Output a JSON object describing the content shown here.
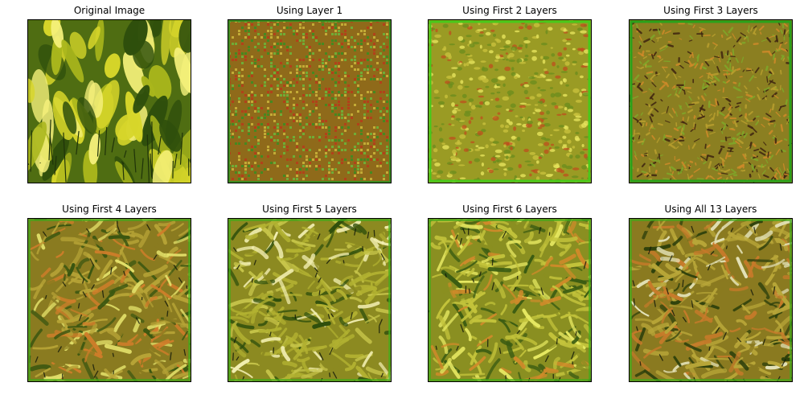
{
  "figure": {
    "panels": [
      {
        "title": "Original Image",
        "style": "photo",
        "colors": {
          "bg": "#4f6d12",
          "a": "#d7d62a",
          "b": "#a9b61c",
          "c": "#2f4f0c",
          "d": "#f4f07a"
        }
      },
      {
        "title": "Using Layer 1",
        "style": "noise-fine",
        "colors": {
          "bg": "#8f6a1a",
          "a": "#6db43a",
          "b": "#b63d1b",
          "c": "#c9b33a",
          "d": "#3e8d21"
        }
      },
      {
        "title": "Using First 2 Layers",
        "style": "noise-blob",
        "colors": {
          "bg": "#9a9b24",
          "a": "#c8c03c",
          "b": "#c04a1d",
          "c": "#6d8d1d",
          "d": "#e6e45c"
        }
      },
      {
        "title": "Using First 3 Layers",
        "style": "noise-streak",
        "colors": {
          "bg": "#8b7f21",
          "a": "#b99f2e",
          "b": "#3e2410",
          "c": "#7fa92a",
          "d": "#d08a2a"
        }
      },
      {
        "title": "Using First 4 Layers",
        "style": "leaf",
        "colors": {
          "bg": "#8a7b20",
          "a": "#b6a336",
          "b": "#3a5610",
          "c": "#d07d2a",
          "d": "#e3e16a"
        }
      },
      {
        "title": "Using First 5 Layers",
        "style": "leaf",
        "colors": {
          "bg": "#8c8a21",
          "a": "#b2b131",
          "b": "#2f4f0c",
          "c": "#c7c54a",
          "d": "#f2efb2"
        }
      },
      {
        "title": "Using First 6 Layers",
        "style": "leaf",
        "colors": {
          "bg": "#8a8f21",
          "a": "#c3c33b",
          "b": "#3b5c12",
          "c": "#d08a2a",
          "d": "#e8ea63"
        }
      },
      {
        "title": "Using All 13 Layers",
        "style": "leaf",
        "colors": {
          "bg": "#8a7a20",
          "a": "#b8a638",
          "b": "#2c3f0b",
          "c": "#c77a2a",
          "d": "#e3e2b8"
        }
      }
    ]
  }
}
